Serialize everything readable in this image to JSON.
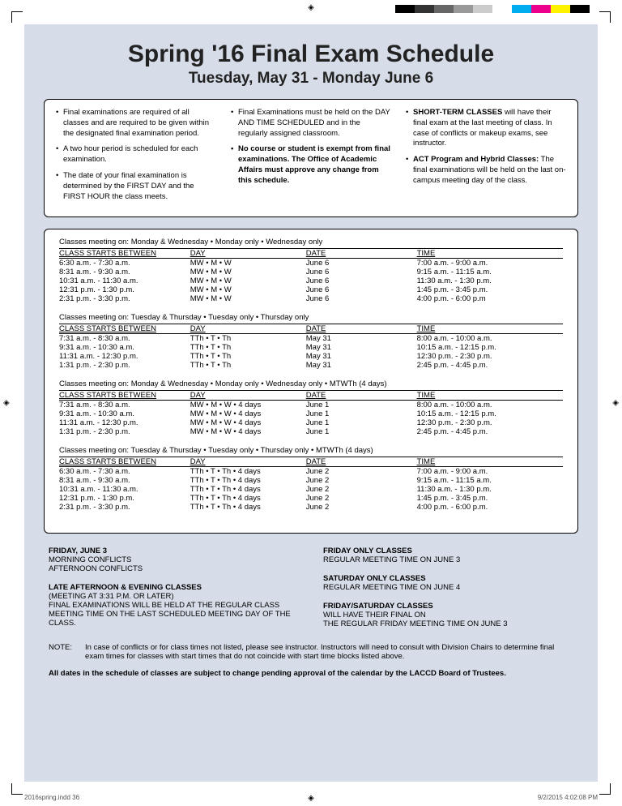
{
  "colorbars": [
    "#000000",
    "#333333",
    "#666666",
    "#999999",
    "#cccccc",
    "#ffffff",
    "#00aeef",
    "#ec008c",
    "#fff200",
    "#000000"
  ],
  "title": "Spring '16 Final Exam Schedule",
  "subtitle": "Tuesday, May 31 - Monday June 6",
  "info": {
    "col1": [
      "Final examinations are required of all classes and are required to be given within the designated final examination period.",
      "A two hour period is scheduled for each examination.",
      "The date of your final examination is determined by the FIRST DAY and the FIRST HOUR the class meets."
    ],
    "col2": [
      {
        "t": "Final Examinations must be held on the DAY AND TIME SCHEDULED and in the regularly assigned classroom.",
        "b": false
      },
      {
        "t": "No course or student is exempt from final examinations.  The Office of Academic Affairs must approve any change from this schedule.",
        "b": true
      }
    ],
    "col3": [
      {
        "lead": "SHORT-TERM CLASSES",
        "rest": " will have their final exam at the last meeting of class.  In case of conflicts or makeup exams, see instructor."
      },
      {
        "lead": "ACT Program and Hybrid Classes:",
        "rest": " The final examinations will be held on the last on-campus meeting day of the class."
      }
    ]
  },
  "headers": {
    "c1": "CLASS STARTS BETWEEN",
    "c2": "DAY",
    "c3": "DATE",
    "c4": "TIME"
  },
  "blocks": [
    {
      "title": "Classes meeting on:   Monday & Wednesday • Monday only • Wednesday only",
      "rows": [
        [
          "6:30 a.m.   -   7:30 a.m.",
          "MW • M • W",
          "June 6",
          "7:00 a.m.    -    9:00 a.m."
        ],
        [
          "8:31 a.m.   -   9:30 a.m.",
          "MW • M • W",
          "June 6",
          "9:15 a.m.    -   11:15 a.m."
        ],
        [
          "10:31 a.m. -  11:30 a.m.",
          "MW • M • W",
          "June 6",
          "11:30 a.m.  -    1:30 p.m."
        ],
        [
          "12:31 p.m. -   1:30 p.m.",
          "MW • M • W",
          "June 6",
          "1:45 p.m.    -    3:45 p.m."
        ],
        [
          "2:31 p.m.   -   3:30 p.m.",
          "MW • M • W",
          "June 6",
          "4:00 p.m.    -    6:00 p.m"
        ]
      ]
    },
    {
      "title": "Classes meeting on:   Tuesday & Thursday • Tuesday only • Thursday only",
      "rows": [
        [
          "7:31 a.m.   -   8:30 a.m.",
          "TTh • T • Th",
          "May 31",
          "8:00 a.m.    -   10:00 a.m."
        ],
        [
          "9:31 a.m.   -  10:30 a.m.",
          "TTh • T • Th",
          "May 31",
          "10:15 a.m.  -   12:15 p.m."
        ],
        [
          "11:31 a.m. -  12:30 p.m.",
          "TTh • T • Th",
          "May 31",
          "12:30 p.m.  -    2:30 p.m."
        ],
        [
          "1:31 p.m.   -   2:30 p.m.",
          "TTh • T • Th",
          "May 31",
          "2:45 p.m.    -    4:45 p.m."
        ]
      ]
    },
    {
      "title": "Classes meeting on:   Monday & Wednesday • Monday only • Wednesday only •  MTWTh (4 days)",
      "rows": [
        [
          "7:31 a.m.   -   8:30 a.m.",
          "MW • M • W • 4 days",
          "June 1",
          "8:00 a.m.    -   10:00 a.m."
        ],
        [
          "9:31 a.m.   -  10:30 a.m.",
          "MW • M • W • 4 days",
          "June 1",
          "10:15 a.m.  -   12:15 p.m."
        ],
        [
          "11:31 a.m. -  12:30 p.m.",
          "MW • M • W • 4 days",
          "June 1",
          "12:30 p.m.  -    2:30 p.m."
        ],
        [
          "1:31 p.m.   -   2:30 p.m.",
          "MW • M • W • 4 days",
          "June 1",
          "2:45 p.m.    -    4:45 p.m."
        ]
      ]
    },
    {
      "title": "Classes meeting on:   Tuesday & Thursday • Tuesday only • Thursday only •  MTWTh (4 days)",
      "rows": [
        [
          "6:30 a.m.   -   7:30 a.m.",
          "TTh • T • Th • 4 days",
          "June 2",
          "7:00 a.m.    -    9:00 a.m."
        ],
        [
          "8:31 a.m.   -   9:30 a.m.",
          "TTh • T • Th • 4 days",
          "June 2",
          "9:15 a.m.    -   11:15 a.m."
        ],
        [
          "10:31 a.m. -  11:30 a.m.",
          "TTh • T • Th • 4 days",
          "June 2",
          "11:30 a.m.  -    1:30 p.m."
        ],
        [
          "12:31 p.m. -   1:30 p.m.",
          "TTh • T • Th • 4 days",
          "June 2",
          "1:45 p.m.    -    3:45 p.m."
        ],
        [
          "2:31 p.m.   -   3:30 p.m.",
          "TTh • T • Th • 4 days",
          "June 2",
          "4:00 p.m.    -    6:00 p.m."
        ]
      ]
    }
  ],
  "bottom": {
    "left": [
      {
        "h": "FRIDAY, JUNE 3",
        "lines": [
          "MORNING CONFLICTS",
          "AFTERNOON CONFLICTS"
        ]
      },
      {
        "h": "LATE AFTERNOON & EVENING CLASSES",
        "lines": [
          "(MEETING AT 3:31 P.M. OR LATER)",
          "FINAL EXAMINATIONS WILL BE HELD AT THE REGULAR CLASS MEETING TIME ON THE LAST SCHEDULED MEETING DAY OF THE CLASS."
        ]
      }
    ],
    "right": [
      {
        "h": "FRIDAY ONLY CLASSES",
        "lines": [
          "REGULAR MEETING TIME ON JUNE 3"
        ]
      },
      {
        "h": "SATURDAY ONLY CLASSES",
        "lines": [
          "REGULAR MEETING TIME ON JUNE 4"
        ]
      },
      {
        "h": "FRIDAY/SATURDAY CLASSES",
        "lines": [
          "WILL HAVE THEIR FINAL ON",
          "THE REGULAR FRIDAY MEETING TIME ON JUNE 3"
        ]
      }
    ]
  },
  "note_label": "NOTE:",
  "note_text": "In case of conflicts or for class times not listed, please see instructor. Instructors will need to consult with Division Chairs to determine final exam times for classes with start times that do not coincide with start time blocks listed above.",
  "footer": "All dates in the schedule of classes are subject to change pending approval of the calendar by the LACCD Board of Trustees.",
  "slug_left": "2016spring.indd   36",
  "slug_right": "9/2/2015   4:02:08 PM"
}
